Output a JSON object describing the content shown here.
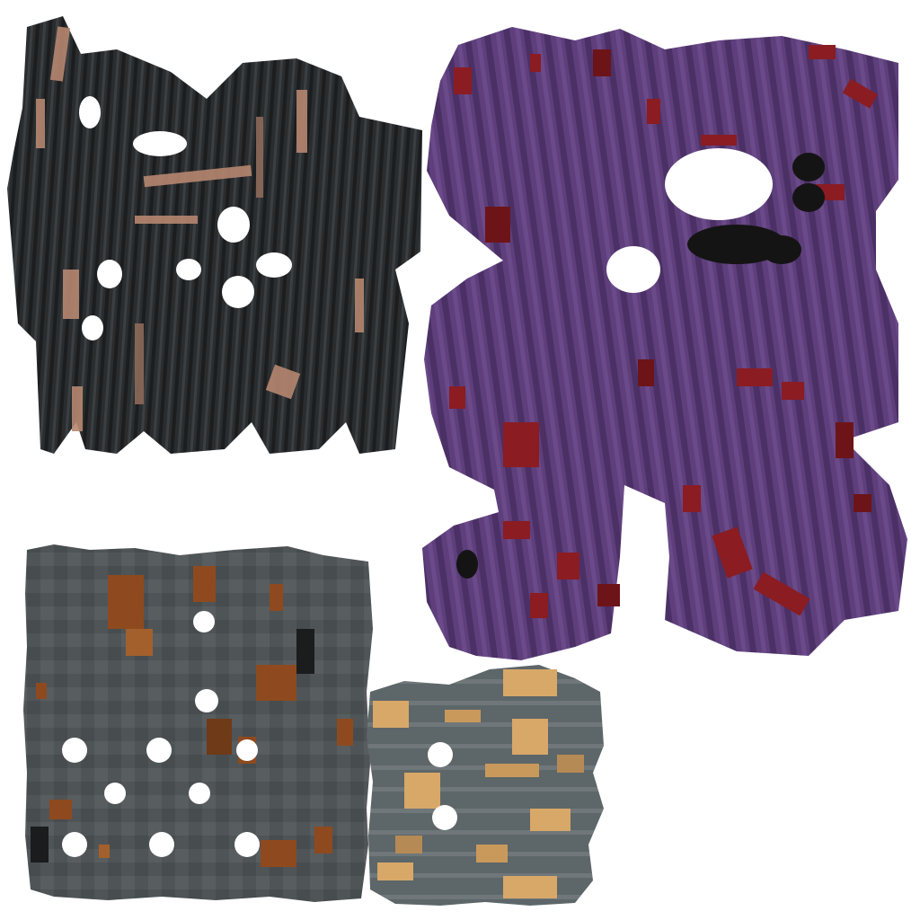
{
  "texture_atlas": {
    "background_color": "#ffffff",
    "patches": [
      {
        "id": "dark-striped-patch",
        "base_color": "#2a2d2f",
        "stripe_colors": [
          "#1b1d1f",
          "#3b3f42",
          "#55595b"
        ],
        "accent_colors": [
          "#b68770",
          "#8d6a5a",
          "#6b6f70"
        ]
      },
      {
        "id": "purple-patch",
        "base_color": "#5e3f7c",
        "stripe_colors": [
          "#4b3066",
          "#6a4a88",
          "#3a2350"
        ],
        "accent_colors": [
          "#8a1c22",
          "#6d1418"
        ],
        "spot_color": "#141414"
      },
      {
        "id": "grey-rust-patch",
        "base_color": "#4f5457",
        "stripe_colors": [
          "#3f4447",
          "#63686b",
          "#1a1c1d"
        ],
        "accent_colors": [
          "#8e4a1e",
          "#a3602c",
          "#6f3a18"
        ]
      },
      {
        "id": "grey-tan-patch",
        "base_color": "#5d6669",
        "stripe_colors": [
          "#6f777a",
          "#4f585b"
        ],
        "accent_colors": [
          "#d8a868",
          "#c9995c",
          "#b68a55"
        ]
      }
    ]
  }
}
